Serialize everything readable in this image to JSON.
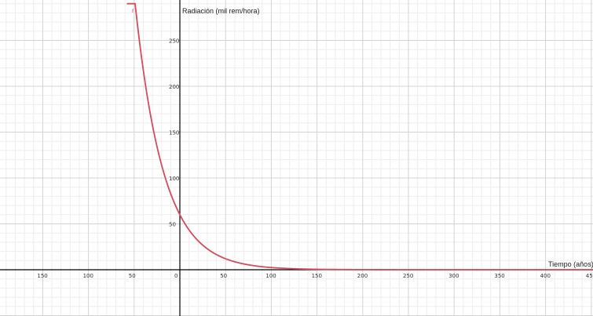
{
  "chart_data": {
    "type": "line",
    "xlabel": "Tiempo (años)",
    "ylabel": "Radiación (mil rem/hora)",
    "curve_label": "r",
    "xlim": [
      -195,
      460
    ],
    "ylim": [
      -50,
      290
    ],
    "x_ticks": [
      -150,
      -100,
      -50,
      0,
      50,
      100,
      150,
      200,
      250,
      300,
      350,
      400,
      450
    ],
    "x_tick_labels": [
      "150",
      "100",
      "50",
      "0",
      "50",
      "100",
      "150",
      "200",
      "250",
      "300",
      "350",
      "400",
      "450"
    ],
    "y_ticks": [
      50,
      100,
      150,
      200,
      250
    ],
    "y_tick_labels": [
      "50",
      "100",
      "150",
      "200",
      "250"
    ],
    "grid": true,
    "series": [
      {
        "x": [
          -58,
          -50,
          -40,
          -30,
          -20,
          -10,
          0,
          10,
          20,
          30,
          40,
          60,
          80,
          100,
          150,
          200,
          300,
          400,
          460
        ],
        "y": [
          290,
          237.6,
          173.0,
          125.9,
          91.6,
          66.7,
          60,
          35.3,
          25.7,
          18.7,
          13.6,
          7.2,
          3.8,
          2.0,
          0.4,
          0.1,
          0,
          0,
          0
        ]
      }
    ],
    "colors": {
      "curve": "#d94a5a",
      "axis": "#000000",
      "grid_major": "#d4d4d4",
      "grid_minor": "#eeeeee"
    }
  }
}
